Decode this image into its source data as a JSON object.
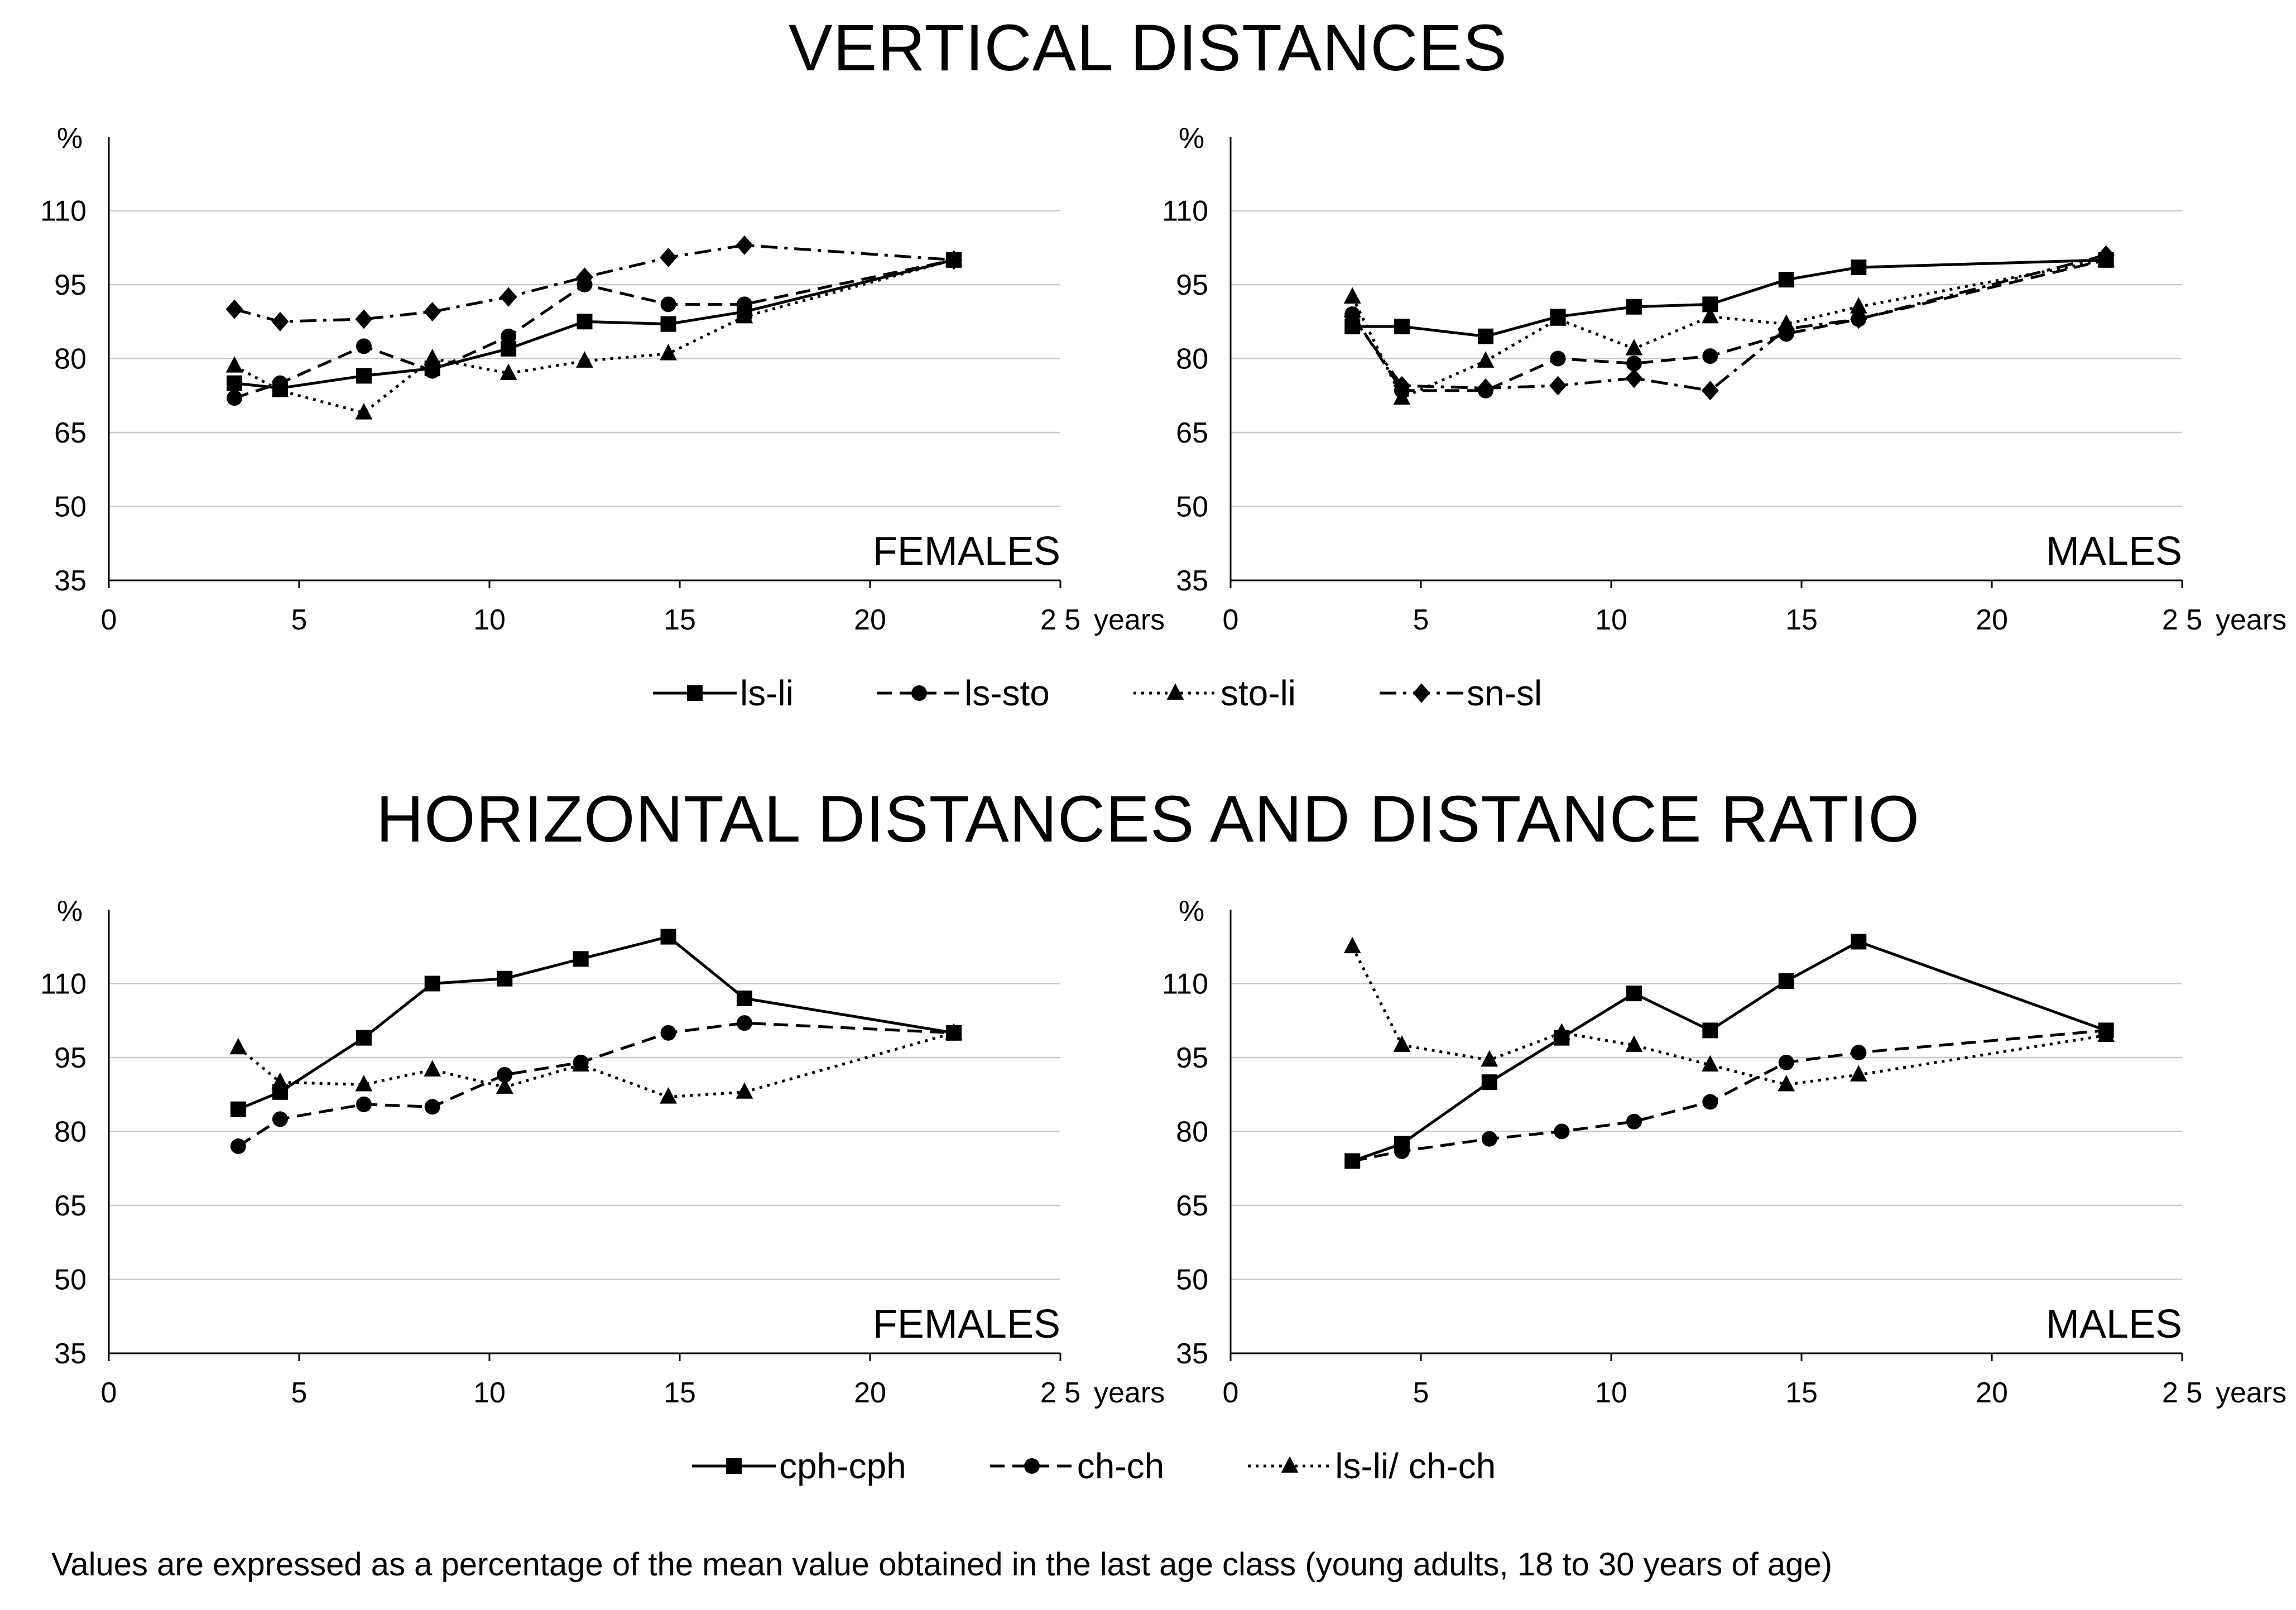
{
  "titles": {
    "top": "VERTICAL DISTANCES",
    "bottom": "HORIZONTAL DISTANCES AND DISTANCE RATIO"
  },
  "footnote": "Values are expressed as a percentage of the mean value obtained in the last age class (young adults, 18 to 30 years of age)",
  "legend_top": [
    {
      "label": "ls-li",
      "style": "solid",
      "marker": "square"
    },
    {
      "label": "ls-sto",
      "style": "dashed",
      "marker": "circle"
    },
    {
      "label": "sto-li",
      "style": "dotted",
      "marker": "triangle"
    },
    {
      "label": "sn-sl",
      "style": "dashdot",
      "marker": "diamond"
    }
  ],
  "legend_bottom": [
    {
      "label": "cph-cph",
      "style": "solid",
      "marker": "square"
    },
    {
      "label": "ch-ch",
      "style": "dashed",
      "marker": "circle"
    },
    {
      "label": "ls-li/ ch-ch",
      "style": "dotted",
      "marker": "triangle"
    }
  ],
  "chart_data": [
    {
      "id": "vertical-females",
      "type": "line",
      "panel_label": "FEMALES",
      "y_unit": "%",
      "xlabel": "years",
      "xlim": [
        0,
        25
      ],
      "ylim": [
        35,
        125
      ],
      "x_ticks": [
        0,
        5,
        10,
        15,
        20,
        25
      ],
      "x_tick_labels": [
        "0",
        "5",
        "10",
        "15",
        "20",
        "2 5"
      ],
      "y_ticks": [
        35,
        50,
        65,
        80,
        95,
        110
      ],
      "series": [
        {
          "name": "ls-li",
          "style": "solid",
          "marker": "square",
          "x": [
            3.3,
            4.5,
            6.7,
            8.5,
            10.5,
            12.5,
            14.7,
            16.7,
            22.2
          ],
          "y": [
            75,
            74,
            76.5,
            78,
            82,
            87.5,
            87,
            89.5,
            100
          ]
        },
        {
          "name": "ls-sto",
          "style": "dashed",
          "marker": "circle",
          "x": [
            3.3,
            4.5,
            6.7,
            8.5,
            10.5,
            12.5,
            14.7,
            16.7,
            22.2
          ],
          "y": [
            72,
            75,
            82.5,
            77.5,
            84.5,
            95,
            91,
            91,
            100
          ]
        },
        {
          "name": "sto-li",
          "style": "dotted",
          "marker": "triangle",
          "x": [
            3.3,
            4.5,
            6.7,
            8.5,
            10.5,
            12.5,
            14.7,
            16.7,
            22.2
          ],
          "y": [
            78.5,
            73.5,
            69,
            80,
            77,
            79.5,
            81,
            88.5,
            100
          ]
        },
        {
          "name": "sn-sl",
          "style": "dashdot",
          "marker": "diamond",
          "x": [
            3.3,
            4.5,
            6.7,
            8.5,
            10.5,
            12.5,
            14.7,
            16.7,
            22.2
          ],
          "y": [
            90,
            87.5,
            88,
            89.5,
            92.5,
            96.5,
            100.5,
            103,
            100
          ]
        }
      ]
    },
    {
      "id": "vertical-males",
      "type": "line",
      "panel_label": "MALES",
      "y_unit": "%",
      "xlabel": "years",
      "xlim": [
        0,
        25
      ],
      "ylim": [
        35,
        125
      ],
      "x_ticks": [
        0,
        5,
        10,
        15,
        20,
        25
      ],
      "x_tick_labels": [
        "0",
        "5",
        "10",
        "15",
        "20",
        "2 5"
      ],
      "y_ticks": [
        35,
        50,
        65,
        80,
        95,
        110
      ],
      "series": [
        {
          "name": "ls-li",
          "style": "solid",
          "marker": "square",
          "x": [
            3.2,
            4.5,
            6.7,
            8.6,
            10.6,
            12.6,
            14.6,
            16.5,
            23
          ],
          "y": [
            86.5,
            86.5,
            84.5,
            88.5,
            90.5,
            91,
            96,
            98.5,
            100
          ]
        },
        {
          "name": "ls-sto",
          "style": "dashed",
          "marker": "circle",
          "x": [
            3.2,
            4.5,
            6.7,
            8.6,
            10.6,
            12.6,
            14.6,
            16.5,
            23
          ],
          "y": [
            89,
            73.5,
            73.5,
            80,
            79,
            80.5,
            85,
            88,
            100
          ]
        },
        {
          "name": "sto-li",
          "style": "dotted",
          "marker": "triangle",
          "x": [
            3.2,
            4.5,
            6.7,
            8.6,
            10.6,
            12.6,
            14.6,
            16.5,
            23
          ],
          "y": [
            92.5,
            72,
            79.5,
            88,
            82,
            88.5,
            87,
            90.5,
            100
          ]
        },
        {
          "name": "sn-sl",
          "style": "dashdot",
          "marker": "diamond",
          "x": [
            3.2,
            4.5,
            6.7,
            8.6,
            10.6,
            12.6,
            14.6,
            16.5,
            23
          ],
          "y": [
            88.5,
            74.5,
            74,
            74.5,
            76,
            73.5,
            86,
            88,
            101
          ]
        }
      ]
    },
    {
      "id": "horizontal-females",
      "type": "line",
      "panel_label": "FEMALES",
      "y_unit": "%",
      "xlabel": "years",
      "xlim": [
        0,
        25
      ],
      "ylim": [
        35,
        125
      ],
      "x_ticks": [
        0,
        5,
        10,
        15,
        20,
        25
      ],
      "x_tick_labels": [
        "0",
        "5",
        "10",
        "15",
        "20",
        "2 5"
      ],
      "y_ticks": [
        35,
        50,
        65,
        80,
        95,
        110
      ],
      "series": [
        {
          "name": "cph-cph",
          "style": "solid",
          "marker": "square",
          "x": [
            3.4,
            4.5,
            6.7,
            8.5,
            10.4,
            12.4,
            14.7,
            16.7,
            22.2
          ],
          "y": [
            84.5,
            88,
            99,
            110,
            111,
            115,
            119.5,
            107,
            100
          ]
        },
        {
          "name": "ch-ch",
          "style": "dashed",
          "marker": "circle",
          "x": [
            3.4,
            4.5,
            6.7,
            8.5,
            10.4,
            12.4,
            14.7,
            16.7,
            22.2
          ],
          "y": [
            77,
            82.5,
            85.5,
            85,
            91.5,
            94,
            100,
            102,
            100
          ]
        },
        {
          "name": "ls-li/ ch-ch",
          "style": "dotted",
          "marker": "triangle",
          "x": [
            3.4,
            4.5,
            6.7,
            8.5,
            10.4,
            12.4,
            14.7,
            16.7,
            22.2
          ],
          "y": [
            97,
            90,
            89.5,
            92.5,
            89,
            93.5,
            87,
            88,
            100
          ]
        }
      ]
    },
    {
      "id": "horizontal-males",
      "type": "line",
      "panel_label": "MALES",
      "y_unit": "%",
      "xlabel": "years",
      "xlim": [
        0,
        25
      ],
      "ylim": [
        35,
        125
      ],
      "x_ticks": [
        0,
        5,
        10,
        15,
        20,
        25
      ],
      "x_tick_labels": [
        "0",
        "5",
        "10",
        "15",
        "20",
        "2 5"
      ],
      "y_ticks": [
        35,
        50,
        65,
        80,
        95,
        110
      ],
      "series": [
        {
          "name": "cph-cph",
          "style": "solid",
          "marker": "square",
          "x": [
            3.2,
            4.5,
            6.8,
            8.7,
            10.6,
            12.6,
            14.6,
            16.5,
            23
          ],
          "y": [
            74,
            77.5,
            90,
            99,
            108,
            100.5,
            110.5,
            118.5,
            100.5
          ]
        },
        {
          "name": "ch-ch",
          "style": "dashed",
          "marker": "circle",
          "x": [
            3.2,
            4.5,
            6.8,
            8.7,
            10.6,
            12.6,
            14.6,
            16.5,
            23
          ],
          "y": [
            74,
            76,
            78.5,
            80,
            82,
            86,
            94,
            96,
            100.5
          ]
        },
        {
          "name": "ls-li/ ch-ch",
          "style": "dotted",
          "marker": "triangle",
          "x": [
            3.2,
            4.5,
            6.8,
            8.7,
            10.6,
            12.6,
            14.6,
            16.5,
            23
          ],
          "y": [
            117.5,
            97.5,
            94.5,
            100,
            97.5,
            93.5,
            89.5,
            91.5,
            99.5
          ]
        }
      ]
    }
  ]
}
